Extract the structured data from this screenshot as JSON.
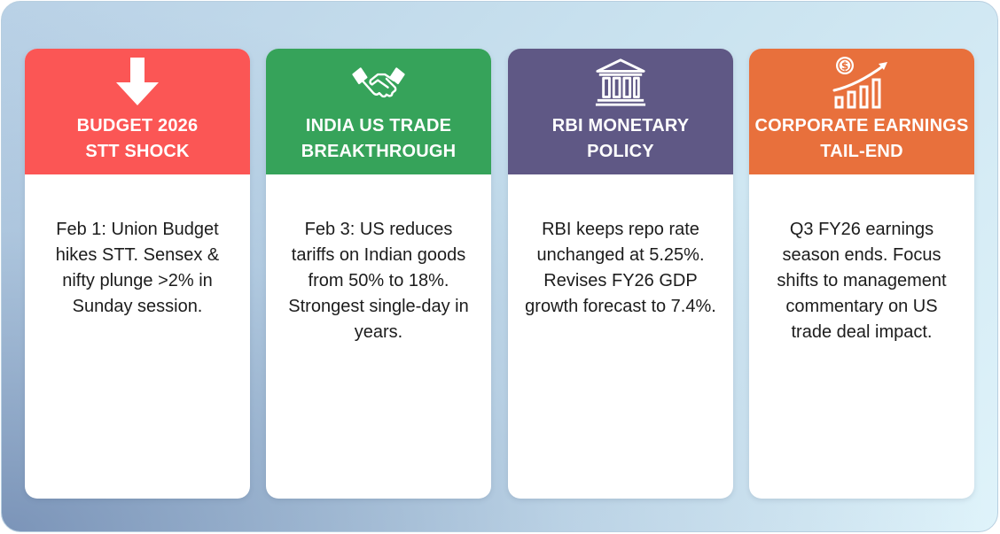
{
  "cards": [
    {
      "title_line1": "BUDGET 2026",
      "title_line2": "STT SHOCK",
      "body": "Feb 1: Union Budget hikes STT. Sensex & nifty plunge >2% in Sunday session.",
      "icon": "arrow-down-icon",
      "color": "#fb5655"
    },
    {
      "title_line1": "INDIA US TRADE",
      "title_line2": "BREAKTHROUGH",
      "body": "Feb 3: US reduces tariffs on Indian goods from 50% to 18%. Strongest single-day in years.",
      "icon": "handshake-icon",
      "color": "#36a35a"
    },
    {
      "title_line1": "RBI MONETARY",
      "title_line2": "POLICY",
      "body": "RBI keeps repo rate unchanged at 5.25%. Revises FY26 GDP growth forecast to 7.4%.",
      "icon": "bank-icon",
      "color": "#5f5885"
    },
    {
      "title_line1": "CORPORATE EARNINGS",
      "title_line2": "TAIL-END",
      "body": "Q3 FY26 earnings season ends. Focus shifts to management commentary on US trade deal impact.",
      "icon": "earnings-growth-icon",
      "color": "#e8703c"
    }
  ]
}
